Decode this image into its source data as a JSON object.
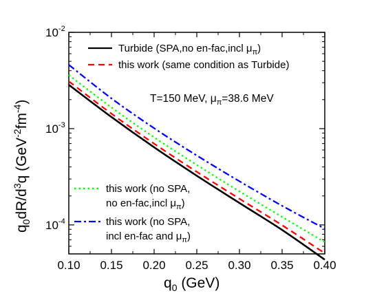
{
  "chart_data": {
    "type": "line",
    "xlabel": "q0 (GeV)",
    "ylabel": "q0dR/d3q (GeV-2fm-4)",
    "xlim": [
      0.1,
      0.4
    ],
    "ylim": [
      5e-05,
      0.01
    ],
    "yscale": "log",
    "grid": false,
    "legend_position": "top-right and bottom-left",
    "x_ticks": [
      "0.10",
      "0.15",
      "0.20",
      "0.25",
      "0.30",
      "0.35",
      "0.40"
    ],
    "y_ticks": [
      {
        "base": "10",
        "exp": "-4",
        "value": 0.0001
      },
      {
        "base": "10",
        "exp": "-3",
        "value": 0.001
      },
      {
        "base": "10",
        "exp": "-2",
        "value": 0.01
      }
    ],
    "annotation": "T=150 MeV, μπ=38.6 MeV",
    "x": [
      0.1,
      0.15,
      0.2,
      0.25,
      0.3,
      0.35,
      0.4
    ],
    "series": [
      {
        "name": "Turbide (SPA,no en-fac,incl μπ)",
        "color": "#000000",
        "dash": "solid",
        "values": [
          0.00285,
          0.00132,
          0.00064,
          0.000324,
          0.000169,
          8.87e-05,
          4.36e-05
        ]
      },
      {
        "name": "this work (same condition as Turbide)",
        "color": "#ff0000",
        "dash": "dashed",
        "values": [
          0.0031,
          0.00143,
          0.000698,
          0.000356,
          0.000187,
          9.93e-05,
          5.08e-05
        ]
      },
      {
        "name": "this work (no SPA, no en-fac,incl μπ)",
        "color": "#00ff00",
        "dash": "dotted",
        "values": [
          0.0036,
          0.00166,
          0.000812,
          0.00042,
          0.000223,
          0.000121,
          6.63e-05
        ]
      },
      {
        "name": "this work (no SPA, incl en-fac and μπ)",
        "color": "#0000ff",
        "dash": "dash-dot",
        "values": [
          0.0046,
          0.00206,
          0.00101,
          0.000526,
          0.000284,
          0.000158,
          9.13e-05
        ]
      }
    ]
  },
  "legend_top": [
    {
      "text": "Turbide (SPA,no en-fac,incl μ",
      "sub": "π",
      "tail": ")"
    },
    {
      "text": "this work (same condition as Turbide)",
      "sub": "",
      "tail": ""
    }
  ],
  "legend_bottom": [
    {
      "line1": "this work (no SPA,",
      "line2": "no en-fac,incl μ",
      "sub": "π",
      "tail": ")"
    },
    {
      "line1": "this work (no SPA,",
      "line2": "incl en-fac and μ",
      "sub": "π",
      "tail": ")"
    }
  ],
  "annotation": {
    "prefix": "T=150 MeV, μ",
    "sub": "π",
    "suffix": "=38.6 MeV"
  },
  "axis_titles": {
    "x": {
      "main": "q",
      "sub": "0",
      "tail": " (GeV)"
    },
    "y": {
      "main": "q",
      "sub1": "0",
      "mid": "dR/d",
      "sup1": "3",
      "mid2": "q (GeV",
      "sup2": "-2",
      "mid3": "fm",
      "sup3": "-4",
      "tail": ")"
    }
  }
}
